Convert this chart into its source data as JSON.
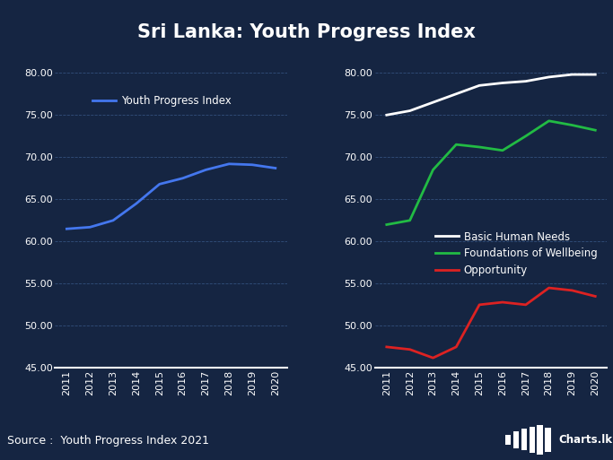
{
  "title": "Sri Lanka: Youth Progress Index",
  "source": "Source :  Youth Progress Index 2021",
  "years": [
    2011,
    2012,
    2013,
    2014,
    2015,
    2016,
    2017,
    2018,
    2019,
    2020
  ],
  "youth_progress_index": [
    61.5,
    61.7,
    62.5,
    64.5,
    66.8,
    67.5,
    68.5,
    69.2,
    69.1,
    68.7
  ],
  "basic_human_needs": [
    75.0,
    75.5,
    76.5,
    77.5,
    78.5,
    78.8,
    79.0,
    79.5,
    79.8,
    79.8
  ],
  "foundations_wellbeing": [
    62.0,
    62.5,
    68.5,
    71.5,
    71.2,
    70.8,
    72.5,
    74.3,
    73.8,
    73.2
  ],
  "opportunity": [
    47.5,
    47.2,
    46.2,
    47.5,
    52.5,
    52.8,
    52.5,
    54.5,
    54.2,
    53.5
  ],
  "bg_color": "#152542",
  "text_color": "#ffffff",
  "grid_color": "#3a5a8a",
  "line_color_ypi": "#4477ee",
  "line_color_bhn": "#ffffff",
  "line_color_fow": "#22bb44",
  "line_color_opp": "#dd2222",
  "ylim": [
    45.0,
    81.0
  ],
  "yticks": [
    45.0,
    50.0,
    55.0,
    60.0,
    65.0,
    70.0,
    75.0,
    80.0
  ],
  "footer_bg": "#1a3060",
  "logo_bg": "#cc2222",
  "title_fontsize": 15,
  "axis_fontsize": 8,
  "legend_fontsize": 8.5,
  "legend_label_ypi": "Youth Progress Index",
  "legend_label_bhn": "Basic Human Needs",
  "legend_label_fow": "Foundations of Wellbeing",
  "legend_label_opp": "Opportunity"
}
